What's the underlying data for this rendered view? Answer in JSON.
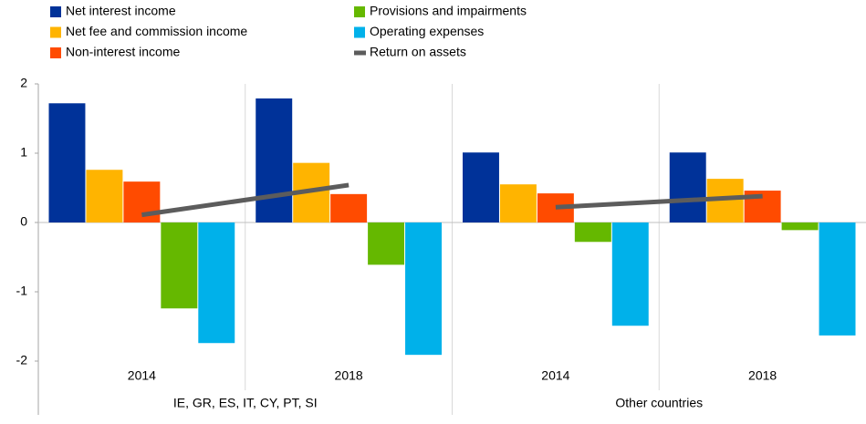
{
  "chart_data": {
    "type": "bar",
    "categories": [
      "2014",
      "2018",
      "2014",
      "2018"
    ],
    "group_labels": [
      "IE, GR, ES, IT, CY, PT, SI",
      "Other countries"
    ],
    "ylim": [
      -2,
      2
    ],
    "yticks": [
      2,
      1,
      0,
      -1,
      -2
    ],
    "series": [
      {
        "name": "Net interest income",
        "color": "#003299",
        "values": [
          1.72,
          1.79,
          1.01,
          1.01
        ]
      },
      {
        "name": "Net fee and commission income",
        "color": "#ffb400",
        "values": [
          0.76,
          0.86,
          0.55,
          0.63
        ]
      },
      {
        "name": "Non-interest income",
        "color": "#ff4b00",
        "values": [
          0.59,
          0.41,
          0.42,
          0.46
        ]
      },
      {
        "name": "Provisions and impairments",
        "color": "#65b800",
        "values": [
          -1.24,
          -0.61,
          -0.28,
          -0.11
        ]
      },
      {
        "name": "Operating expenses",
        "color": "#00b1ea",
        "values": [
          -1.74,
          -1.91,
          -1.49,
          -1.63
        ]
      },
      {
        "name": "Return on assets",
        "color": "#5c5c5c",
        "type": "line",
        "values": [
          0.11,
          0.54,
          0.22,
          0.38
        ]
      }
    ]
  }
}
